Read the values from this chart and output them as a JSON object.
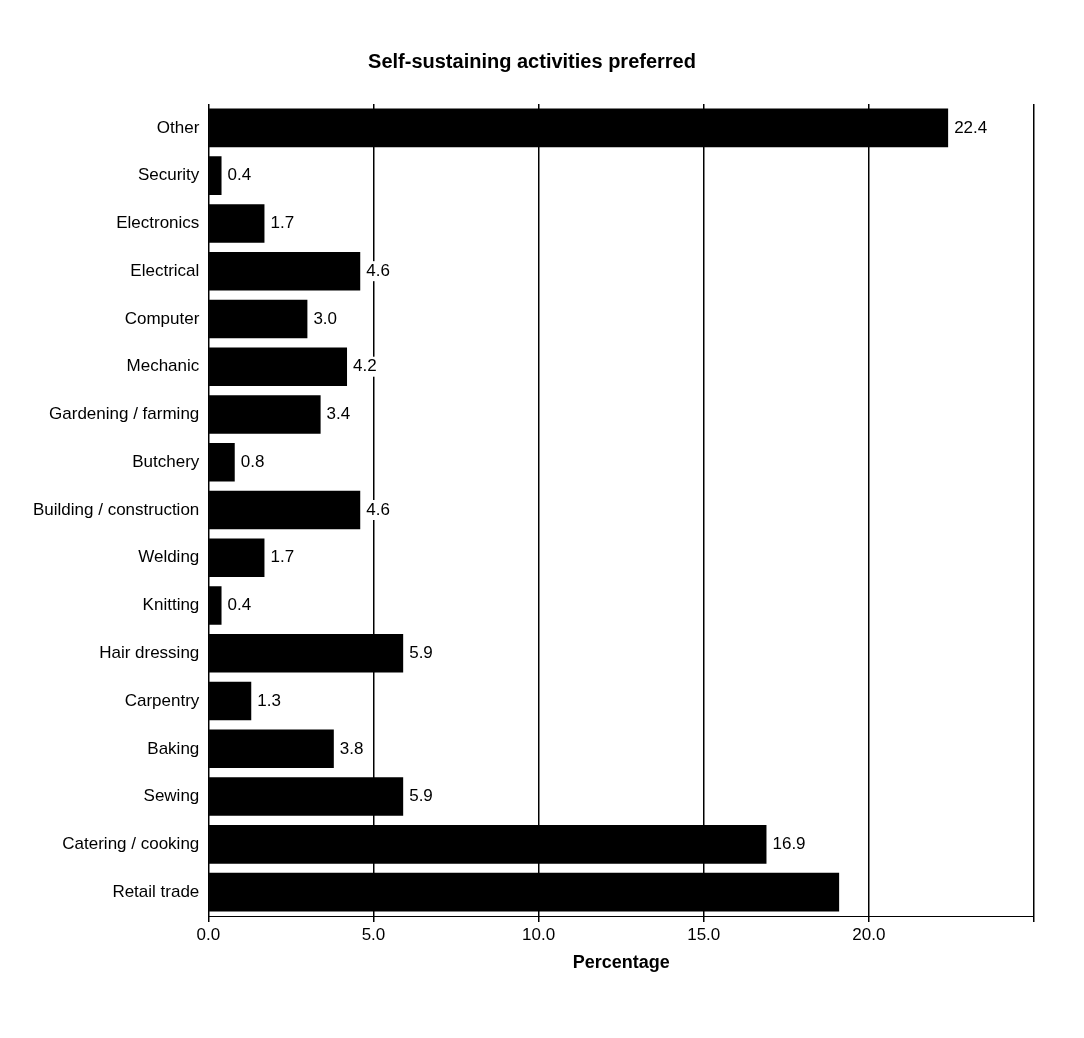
{
  "chart_data": {
    "type": "bar",
    "orientation": "horizontal",
    "title": "Self-sustaining activities preferred",
    "xlabel": "Percentage",
    "categories": [
      "Other",
      "Security",
      "Electronics",
      "Electrical",
      "Computer",
      "Mechanic",
      "Gardening / farming",
      "Butchery",
      "Building / construction",
      "Welding",
      "Knitting",
      "Hair dressing",
      "Carpentry",
      "Baking",
      "Sewing",
      "Catering / cooking",
      "Retail trade"
    ],
    "values": [
      22.4,
      0.4,
      1.7,
      4.6,
      3.0,
      4.2,
      3.4,
      0.8,
      4.6,
      1.7,
      0.4,
      5.9,
      1.3,
      3.8,
      5.9,
      16.9,
      19.1
    ],
    "value_labels": [
      "22.4",
      "0.4",
      "1.7",
      "4.6",
      "3.0",
      "4.2",
      "3.4",
      "0.8",
      "4.6",
      "1.7",
      "0.4",
      "5.9",
      "1.3",
      "3.8",
      "5.9",
      "16.9",
      null
    ],
    "color": "#000000",
    "xlim": [
      0,
      25
    ],
    "xticks": [
      {
        "value": 0,
        "label": "0.0"
      },
      {
        "value": 5,
        "label": "5.0"
      },
      {
        "value": 10,
        "label": "10.0"
      },
      {
        "value": 15,
        "label": "15.0"
      },
      {
        "value": 20,
        "label": "20.0"
      },
      {
        "value": 25,
        "label": null
      }
    ],
    "grid": "x",
    "legend": false
  }
}
